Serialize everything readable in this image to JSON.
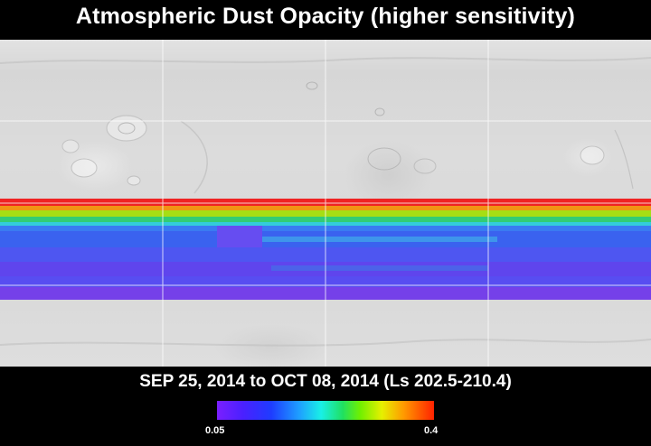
{
  "title": "Atmospheric Dust Opacity (higher sensitivity)",
  "subtitle": "SEP 25, 2014 to OCT 08, 2014 (Ls 202.5-210.4)",
  "colorbar": {
    "min_label": "0.05",
    "max_label": "0.4",
    "range": [
      0.05,
      0.4
    ],
    "colors": [
      "#7a1fff",
      "#4a20ff",
      "#1e3cff",
      "#1ea0ff",
      "#19f0e6",
      "#20e060",
      "#70f000",
      "#e6f000",
      "#ff9a00",
      "#ff2200"
    ]
  },
  "grid_color": "#ffffff",
  "band_colors": {
    "red": "#ee1111",
    "orange": "#f08a00",
    "yellow_green": "#9fdc00",
    "green": "#22cc66",
    "cyan": "#22c8d8",
    "blue": "#2a55ee",
    "indigo": "#4a3ef0",
    "violet": "#6a30e8"
  }
}
